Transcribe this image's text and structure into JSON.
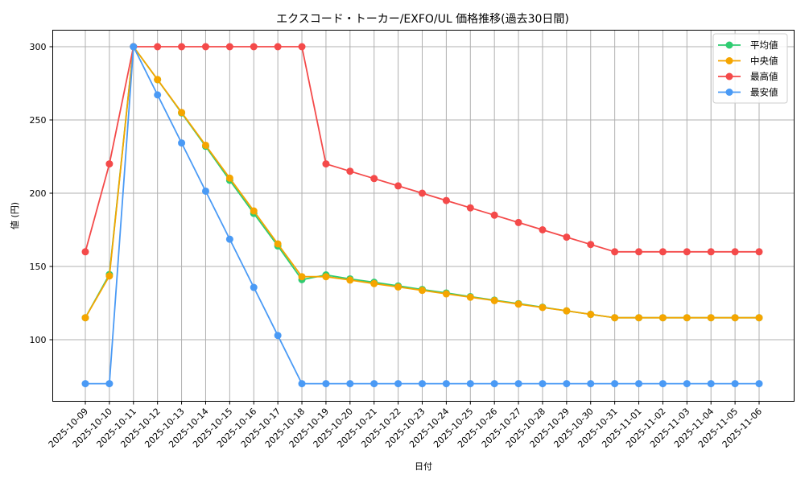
{
  "chart_data": {
    "type": "line",
    "title": "エクスコード・トーカー/EXFO/UL 価格推移(過去30日間)",
    "xlabel": "日付",
    "ylabel": "値 (円)",
    "ylim": [
      58.2,
      311.5
    ],
    "yticks": [
      100,
      150,
      200,
      250,
      300
    ],
    "grid": true,
    "legend_position": "upper right",
    "x": [
      "2025-10-09",
      "2025-10-10",
      "2025-10-11",
      "2025-10-12",
      "2025-10-13",
      "2025-10-14",
      "2025-10-15",
      "2025-10-16",
      "2025-10-17",
      "2025-10-18",
      "2025-10-19",
      "2025-10-20",
      "2025-10-21",
      "2025-10-22",
      "2025-10-23",
      "2025-10-24",
      "2025-10-25",
      "2025-10-26",
      "2025-10-27",
      "2025-10-28",
      "2025-10-29",
      "2025-10-30",
      "2025-10-31",
      "2025-11-01",
      "2025-11-02",
      "2025-11-03",
      "2025-11-04",
      "2025-11-05",
      "2025-11-06"
    ],
    "series": [
      {
        "name": "平均値",
        "color": "#2ecc71",
        "values": [
          115,
          144.5,
          300,
          277.5,
          254.8,
          232,
          208.8,
          186.2,
          164,
          141,
          144.2,
          141.5,
          139.2,
          136.7,
          134.3,
          131.9,
          129.4,
          127,
          124.6,
          122.2,
          119.7,
          117.3,
          115,
          115,
          115,
          115,
          115,
          115,
          115
        ]
      },
      {
        "name": "中央値",
        "color": "#f5a500",
        "values": [
          115,
          143.5,
          300,
          277.6,
          255.1,
          232.7,
          210.3,
          187.9,
          165.4,
          143,
          143,
          140.7,
          138.3,
          136,
          133.7,
          131.3,
          129,
          126.7,
          124.3,
          122,
          119.7,
          117.3,
          115,
          115,
          115,
          115,
          115,
          115,
          115
        ]
      },
      {
        "name": "最高値",
        "color": "#f44a4a",
        "values": [
          160,
          220,
          300,
          300,
          300,
          300,
          300,
          300,
          300,
          300,
          220,
          215,
          210,
          205,
          200,
          195,
          190,
          185,
          180,
          175,
          170,
          165,
          160,
          160,
          160,
          160,
          160,
          160,
          160
        ]
      },
      {
        "name": "最安値",
        "color": "#4a9af5",
        "values": [
          70,
          70,
          300,
          267.1,
          234.3,
          201.4,
          168.6,
          135.7,
          102.9,
          70,
          70,
          70,
          70,
          70,
          70,
          70,
          70,
          70,
          70,
          70,
          70,
          70,
          70,
          70,
          70,
          70,
          70,
          70,
          70
        ]
      }
    ]
  }
}
